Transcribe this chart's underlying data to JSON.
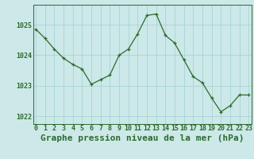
{
  "x": [
    0,
    1,
    2,
    3,
    4,
    5,
    6,
    7,
    8,
    9,
    10,
    11,
    12,
    13,
    14,
    15,
    16,
    17,
    18,
    19,
    20,
    21,
    22,
    23
  ],
  "y": [
    1024.85,
    1024.55,
    1024.2,
    1023.9,
    1023.7,
    1023.55,
    1023.05,
    1023.2,
    1023.35,
    1024.0,
    1024.2,
    1024.7,
    1025.3,
    1025.35,
    1024.65,
    1024.4,
    1023.85,
    1023.3,
    1023.1,
    1022.6,
    1022.15,
    1022.35,
    1022.7,
    1022.7
  ],
  "line_color": "#2d6a2d",
  "marker_color": "#2d6a2d",
  "bg_color": "#cce8e8",
  "grid_color": "#a8d4d4",
  "axis_color": "#2d6a2d",
  "title": "Graphe pression niveau de la mer (hPa)",
  "ylim": [
    1021.75,
    1025.65
  ],
  "yticks": [
    1022,
    1023,
    1024,
    1025
  ],
  "xticks": [
    0,
    1,
    2,
    3,
    4,
    5,
    6,
    7,
    8,
    9,
    10,
    11,
    12,
    13,
    14,
    15,
    16,
    17,
    18,
    19,
    20,
    21,
    22,
    23
  ],
  "tick_fontsize": 6.0,
  "title_fontsize": 8.0
}
